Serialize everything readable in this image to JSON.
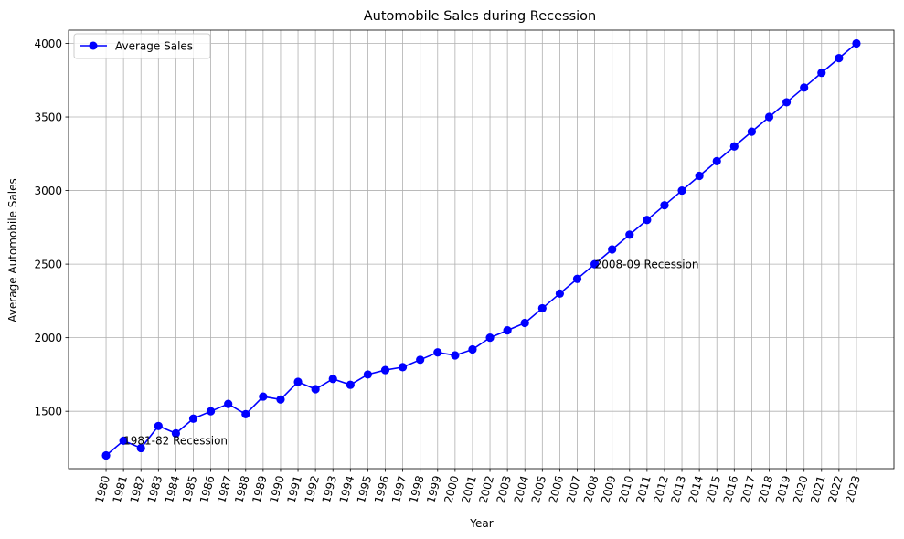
{
  "chart_data": {
    "type": "line",
    "title": "Automobile Sales during Recession",
    "xlabel": "Year",
    "ylabel": "Average Automobile Sales",
    "x": [
      1980,
      1981,
      1982,
      1983,
      1984,
      1985,
      1986,
      1987,
      1988,
      1989,
      1990,
      1991,
      1992,
      1993,
      1994,
      1995,
      1996,
      1997,
      1998,
      1999,
      2000,
      2001,
      2002,
      2003,
      2004,
      2005,
      2006,
      2007,
      2008,
      2009,
      2010,
      2011,
      2012,
      2013,
      2014,
      2015,
      2016,
      2017,
      2018,
      2019,
      2020,
      2021,
      2022,
      2023
    ],
    "series": [
      {
        "name": "Average Sales",
        "color": "#0000ff",
        "marker": "circle",
        "values": [
          1200,
          1300,
          1250,
          1400,
          1350,
          1450,
          1500,
          1550,
          1480,
          1600,
          1580,
          1700,
          1650,
          1720,
          1680,
          1750,
          1780,
          1800,
          1850,
          1900,
          1880,
          1920,
          2000,
          2050,
          2100,
          2200,
          2300,
          2400,
          2500,
          2600,
          2700,
          2800,
          2900,
          3000,
          3100,
          3200,
          3300,
          3400,
          3500,
          3600,
          3700,
          3800,
          3900,
          4000
        ]
      }
    ],
    "yticks": [
      1500,
      2000,
      2500,
      3000,
      3500,
      4000
    ],
    "ylim": [
      1110,
      4090
    ],
    "x_tick_rotation": 75,
    "grid": true,
    "legend_position": "upper-left",
    "annotations": [
      {
        "text": "1981-82 Recession",
        "x": 1981,
        "y": 1300
      },
      {
        "text": "2008-09 Recession",
        "x": 2008,
        "y": 2500
      }
    ]
  }
}
